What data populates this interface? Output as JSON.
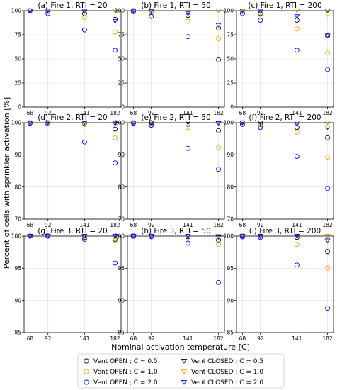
{
  "figure": {
    "ylabel": "Percent of cells with sprinkler activation [%]",
    "xlabel": "Nominal activation temperature [C]"
  },
  "legend": [
    {
      "label": "Vent OPEN ; C = 0.5",
      "color": "#000000",
      "marker": "circle"
    },
    {
      "label": "Vent CLOSED ; C = 0.5",
      "color": "#000000",
      "marker": "triangle-down"
    },
    {
      "label": "Vent OPEN ; C = 1.0",
      "color": "#ffa500",
      "marker": "circle"
    },
    {
      "label": "Vent CLOSED ; C = 1.0",
      "color": "#ffa500",
      "marker": "triangle-down"
    },
    {
      "label": "Vent OPEN ; C = 2.0",
      "color": "#0000ff",
      "marker": "circle"
    },
    {
      "label": "Vent CLOSED ; C = 2.0",
      "color": "#0000ff",
      "marker": "triangle-down"
    }
  ],
  "chart_data": [
    {
      "type": "scatter",
      "title": "(a) Fire 1, RTI = 20",
      "x": [
        68,
        92,
        141,
        182
      ],
      "xticks": [
        "68",
        "92",
        "141",
        "182"
      ],
      "ylim": [
        0,
        100
      ],
      "yticks": [
        0,
        25,
        50,
        75,
        100
      ],
      "grid": true,
      "series": [
        {
          "name": "Vent OPEN ; C = 0.5",
          "values": [
            100,
            99,
            97,
            91
          ]
        },
        {
          "name": "Vent OPEN ; C = 1.0",
          "values": [
            100,
            99,
            93,
            78
          ]
        },
        {
          "name": "Vent OPEN ; C = 2.0",
          "values": [
            100,
            97,
            80,
            59
          ]
        },
        {
          "name": "Vent CLOSED ; C = 0.5",
          "values": [
            100,
            100,
            100,
            100
          ]
        },
        {
          "name": "Vent CLOSED ; C = 1.0",
          "values": [
            100,
            100,
            100,
            100
          ]
        },
        {
          "name": "Vent CLOSED ; C = 2.0",
          "values": [
            100,
            100,
            99,
            89
          ]
        }
      ]
    },
    {
      "type": "scatter",
      "title": "(b) Fire 1, RTI = 50",
      "x": [
        68,
        92,
        141,
        182
      ],
      "xticks": [
        "68",
        "92",
        "141",
        "182"
      ],
      "ylim": [
        0,
        100
      ],
      "yticks": [
        0,
        25,
        50,
        75,
        100
      ],
      "grid": true,
      "series": [
        {
          "name": "Vent OPEN ; C = 0.5",
          "values": [
            100,
            99,
            95,
            82
          ]
        },
        {
          "name": "Vent OPEN ; C = 1.0",
          "values": [
            100,
            98,
            89,
            71
          ]
        },
        {
          "name": "Vent OPEN ; C = 2.0",
          "values": [
            99,
            94,
            73,
            49
          ]
        },
        {
          "name": "Vent CLOSED ; C = 0.5",
          "values": [
            100,
            100,
            100,
            100
          ]
        },
        {
          "name": "Vent CLOSED ; C = 1.0",
          "values": [
            100,
            100,
            100,
            100
          ]
        },
        {
          "name": "Vent CLOSED ; C = 2.0",
          "values": [
            100,
            100,
            97,
            85
          ]
        }
      ]
    },
    {
      "type": "scatter",
      "title": "(c) Fire 1, RTI = 200",
      "x": [
        68,
        92,
        141,
        182
      ],
      "xticks": [
        "68",
        "92",
        "141",
        "182"
      ],
      "ylim": [
        0,
        100
      ],
      "yticks": [
        0,
        25,
        50,
        75,
        100
      ],
      "grid": true,
      "series": [
        {
          "name": "Vent OPEN ; C = 0.5",
          "values": [
            99,
            97,
            90,
            74
          ]
        },
        {
          "name": "Vent OPEN ; C = 1.0",
          "values": [
            99,
            96,
            81,
            56
          ]
        },
        {
          "name": "Vent OPEN ; C = 2.0",
          "values": [
            97,
            90,
            59,
            39
          ]
        },
        {
          "name": "Vent CLOSED ; C = 0.5",
          "values": [
            100,
            100,
            100,
            100
          ]
        },
        {
          "name": "Vent CLOSED ; C = 1.0",
          "values": [
            100,
            100,
            100,
            96
          ]
        },
        {
          "name": "Vent CLOSED ; C = 2.0",
          "values": [
            100,
            99,
            94,
            74
          ]
        }
      ]
    },
    {
      "type": "scatter",
      "title": "(d) Fire 2, RTI = 20",
      "x": [
        68,
        92,
        141,
        182
      ],
      "xticks": [
        "68",
        "92",
        "141",
        "182"
      ],
      "ylim": [
        70,
        100
      ],
      "yticks": [
        70,
        80,
        90,
        100
      ],
      "grid": true,
      "series": [
        {
          "name": "Vent OPEN ; C = 0.5",
          "values": [
            100,
            100,
            99.7,
            98
          ]
        },
        {
          "name": "Vent OPEN ; C = 1.0",
          "values": [
            100,
            100,
            99.4,
            95.3
          ]
        },
        {
          "name": "Vent OPEN ; C = 2.0",
          "values": [
            99.8,
            99.6,
            94,
            87.5
          ]
        },
        {
          "name": "Vent CLOSED ; C = 0.5",
          "values": [
            100,
            100,
            100,
            100
          ]
        },
        {
          "name": "Vent CLOSED ; C = 1.0",
          "values": [
            100,
            100,
            100,
            100
          ]
        },
        {
          "name": "Vent CLOSED ; C = 2.0",
          "values": [
            100,
            100,
            100,
            99.7
          ]
        }
      ]
    },
    {
      "type": "scatter",
      "title": "(e) Fire 2, RTI = 50",
      "x": [
        68,
        92,
        141,
        182
      ],
      "xticks": [
        "68",
        "92",
        "141",
        "182"
      ],
      "ylim": [
        70,
        100
      ],
      "yticks": [
        70,
        80,
        90,
        100
      ],
      "grid": true,
      "series": [
        {
          "name": "Vent OPEN ; C = 0.5",
          "values": [
            100,
            100,
            99.5,
            97.5
          ]
        },
        {
          "name": "Vent OPEN ; C = 1.0",
          "values": [
            100,
            99.7,
            98.5,
            92.3
          ]
        },
        {
          "name": "Vent OPEN ; C = 2.0",
          "values": [
            99.8,
            99.2,
            92,
            85.5
          ]
        },
        {
          "name": "Vent CLOSED ; C = 0.5",
          "values": [
            100,
            100,
            100,
            100
          ]
        },
        {
          "name": "Vent CLOSED ; C = 1.0",
          "values": [
            100,
            100,
            100,
            100
          ]
        },
        {
          "name": "Vent CLOSED ; C = 2.0",
          "values": [
            100,
            100,
            100,
            99.8
          ]
        }
      ]
    },
    {
      "type": "scatter",
      "title": "(f) Fire 2, RTI = 200",
      "x": [
        68,
        92,
        141,
        182
      ],
      "xticks": [
        "68",
        "92",
        "141",
        "182"
      ],
      "ylim": [
        70,
        100
      ],
      "yticks": [
        70,
        80,
        90,
        100
      ],
      "grid": true,
      "series": [
        {
          "name": "Vent OPEN ; C = 0.5",
          "values": [
            100,
            99.5,
            98.5,
            95.3
          ]
        },
        {
          "name": "Vent OPEN ; C = 1.0",
          "values": [
            100,
            99,
            97,
            89.3
          ]
        },
        {
          "name": "Vent OPEN ; C = 2.0",
          "values": [
            99.5,
            98.5,
            89.5,
            79.5
          ]
        },
        {
          "name": "Vent CLOSED ; C = 0.5",
          "values": [
            100,
            100,
            100,
            100
          ]
        },
        {
          "name": "Vent CLOSED ; C = 1.0",
          "values": [
            100,
            100,
            100,
            100
          ]
        },
        {
          "name": "Vent CLOSED ; C = 2.0",
          "values": [
            100,
            100,
            99.5,
            98.5
          ]
        }
      ]
    },
    {
      "type": "scatter",
      "title": "(g) Fire 3, RTI = 20",
      "x": [
        68,
        92,
        141,
        182
      ],
      "xticks": [
        "68",
        "92",
        "141",
        "182"
      ],
      "ylim": [
        85,
        100
      ],
      "yticks": [
        85,
        90,
        95,
        100
      ],
      "grid": true,
      "series": [
        {
          "name": "Vent OPEN ; C = 0.5",
          "values": [
            100,
            100,
            99.8,
            99.5
          ]
        },
        {
          "name": "Vent OPEN ; C = 1.0",
          "values": [
            100,
            100,
            99.7,
            99.3
          ]
        },
        {
          "name": "Vent OPEN ; C = 2.0",
          "values": [
            100,
            100,
            99.5,
            95.8
          ]
        },
        {
          "name": "Vent CLOSED ; C = 0.5",
          "values": [
            100,
            100,
            100,
            100
          ]
        },
        {
          "name": "Vent CLOSED ; C = 1.0",
          "values": [
            100,
            100,
            100,
            100
          ]
        },
        {
          "name": "Vent CLOSED ; C = 2.0",
          "values": [
            100,
            100,
            100,
            100
          ]
        }
      ]
    },
    {
      "type": "scatter",
      "title": "(h) Fire 3, RTI = 50",
      "x": [
        68,
        92,
        141,
        182
      ],
      "xticks": [
        "68",
        "92",
        "141",
        "182"
      ],
      "ylim": [
        85,
        100
      ],
      "yticks": [
        85,
        90,
        95,
        100
      ],
      "grid": true,
      "series": [
        {
          "name": "Vent OPEN ; C = 0.5",
          "values": [
            100,
            100,
            99.9,
            99.4
          ]
        },
        {
          "name": "Vent OPEN ; C = 1.0",
          "values": [
            100,
            100,
            99.7,
            98.7
          ]
        },
        {
          "name": "Vent OPEN ; C = 2.0",
          "values": [
            100,
            99.9,
            98.9,
            92.8
          ]
        },
        {
          "name": "Vent CLOSED ; C = 0.5",
          "values": [
            100,
            100,
            100,
            100
          ]
        },
        {
          "name": "Vent CLOSED ; C = 1.0",
          "values": [
            100,
            100,
            100,
            100
          ]
        },
        {
          "name": "Vent CLOSED ; C = 2.0",
          "values": [
            100,
            100,
            100,
            99.8
          ]
        }
      ]
    },
    {
      "type": "scatter",
      "title": "(i) Fire 3, RTI = 200",
      "x": [
        68,
        92,
        141,
        182
      ],
      "xticks": [
        "68",
        "92",
        "141",
        "182"
      ],
      "ylim": [
        85,
        100
      ],
      "yticks": [
        85,
        90,
        95,
        100
      ],
      "grid": true,
      "series": [
        {
          "name": "Vent OPEN ; C = 0.5",
          "values": [
            100,
            100,
            99.8,
            97.6
          ]
        },
        {
          "name": "Vent OPEN ; C = 1.0",
          "values": [
            100,
            100,
            98.7,
            95
          ]
        },
        {
          "name": "Vent OPEN ; C = 2.0",
          "values": [
            99.9,
            99.8,
            95.5,
            88.8
          ]
        },
        {
          "name": "Vent CLOSED ; C = 0.5",
          "values": [
            100,
            100,
            100,
            100
          ]
        },
        {
          "name": "Vent CLOSED ; C = 1.0",
          "values": [
            100,
            100,
            100,
            100
          ]
        },
        {
          "name": "Vent CLOSED ; C = 2.0",
          "values": [
            100,
            100,
            100,
            99.3
          ]
        }
      ]
    }
  ]
}
